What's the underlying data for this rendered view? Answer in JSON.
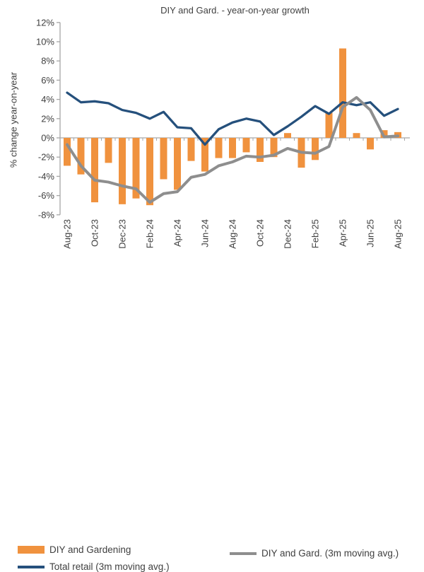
{
  "chart_data": {
    "type": "combo-bar-line",
    "title": "DIY and Gard. - year-on-year growth",
    "xlabel": "",
    "ylabel": "% change year-on-year",
    "ylim": [
      -8,
      12
    ],
    "ytick_step": 2,
    "y_tick_labels": [
      "12%",
      "10%",
      "8%",
      "6%",
      "4%",
      "2%",
      "0%",
      "-2%",
      "-4%",
      "-6%",
      "-8%"
    ],
    "grid": false,
    "legend_position": "bottom",
    "categories": [
      "Aug-23",
      "Sep-23",
      "Oct-23",
      "Nov-23",
      "Dec-23",
      "Jan-24",
      "Feb-24",
      "Mar-24",
      "Apr-24",
      "May-24",
      "Jun-24",
      "Jul-24",
      "Aug-24",
      "Sep-24",
      "Oct-24",
      "Nov-24",
      "Dec-24",
      "Jan-25",
      "Feb-25",
      "Mar-25",
      "Apr-25",
      "May-25",
      "Jun-25",
      "Jul-25",
      "Aug-25"
    ],
    "x_tick_labels": [
      "Aug-23",
      "Oct-23",
      "Dec-23",
      "Feb-24",
      "Apr-24",
      "Jun-24",
      "Aug-24",
      "Oct-24",
      "Dec-24",
      "Feb-25",
      "Apr-25",
      "Jun-25",
      "Aug-25"
    ],
    "series": [
      {
        "name": "DIY and Gardening",
        "type": "bar",
        "color": "#F0923E",
        "values": [
          -2.9,
          -3.8,
          -6.7,
          -2.6,
          -6.9,
          -6.3,
          -7.0,
          -4.3,
          -5.4,
          -2.4,
          -3.5,
          -2.1,
          -2.1,
          -1.5,
          -2.5,
          -2.0,
          0.5,
          -3.1,
          -2.3,
          2.6,
          9.3,
          0.5,
          -1.2,
          0.8,
          0.6
        ]
      },
      {
        "name": "Total retail (3m moving avg.)",
        "type": "line",
        "color": "#25507C",
        "values": [
          4.7,
          3.7,
          3.8,
          3.6,
          2.9,
          2.6,
          2.0,
          2.7,
          1.1,
          1.0,
          -0.7,
          0.9,
          1.6,
          2.0,
          1.7,
          0.3,
          1.2,
          2.2,
          3.3,
          2.5,
          3.7,
          3.4,
          3.7,
          2.3,
          3.0
        ]
      },
      {
        "name": "DIY and Gard. (3m moving avg.)",
        "type": "line",
        "color": "#8E8E8E",
        "values": [
          -0.7,
          -2.9,
          -4.4,
          -4.6,
          -5.0,
          -5.3,
          -6.7,
          -5.8,
          -5.6,
          -4.1,
          -3.8,
          -2.9,
          -2.5,
          -1.9,
          -2.0,
          -1.8,
          -1.1,
          -1.5,
          -1.6,
          -0.9,
          3.2,
          4.2,
          2.9,
          0.1,
          0.2
        ]
      }
    ]
  },
  "legend": {
    "items": [
      {
        "label": "DIY and Gardening",
        "marker": "bar",
        "color": "#F0923E"
      },
      {
        "label": "Total retail (3m moving avg.)",
        "marker": "line",
        "color": "#25507C"
      },
      {
        "label": "DIY and Gard. (3m moving avg.)",
        "marker": "line",
        "color": "#8E8E8E"
      }
    ]
  }
}
